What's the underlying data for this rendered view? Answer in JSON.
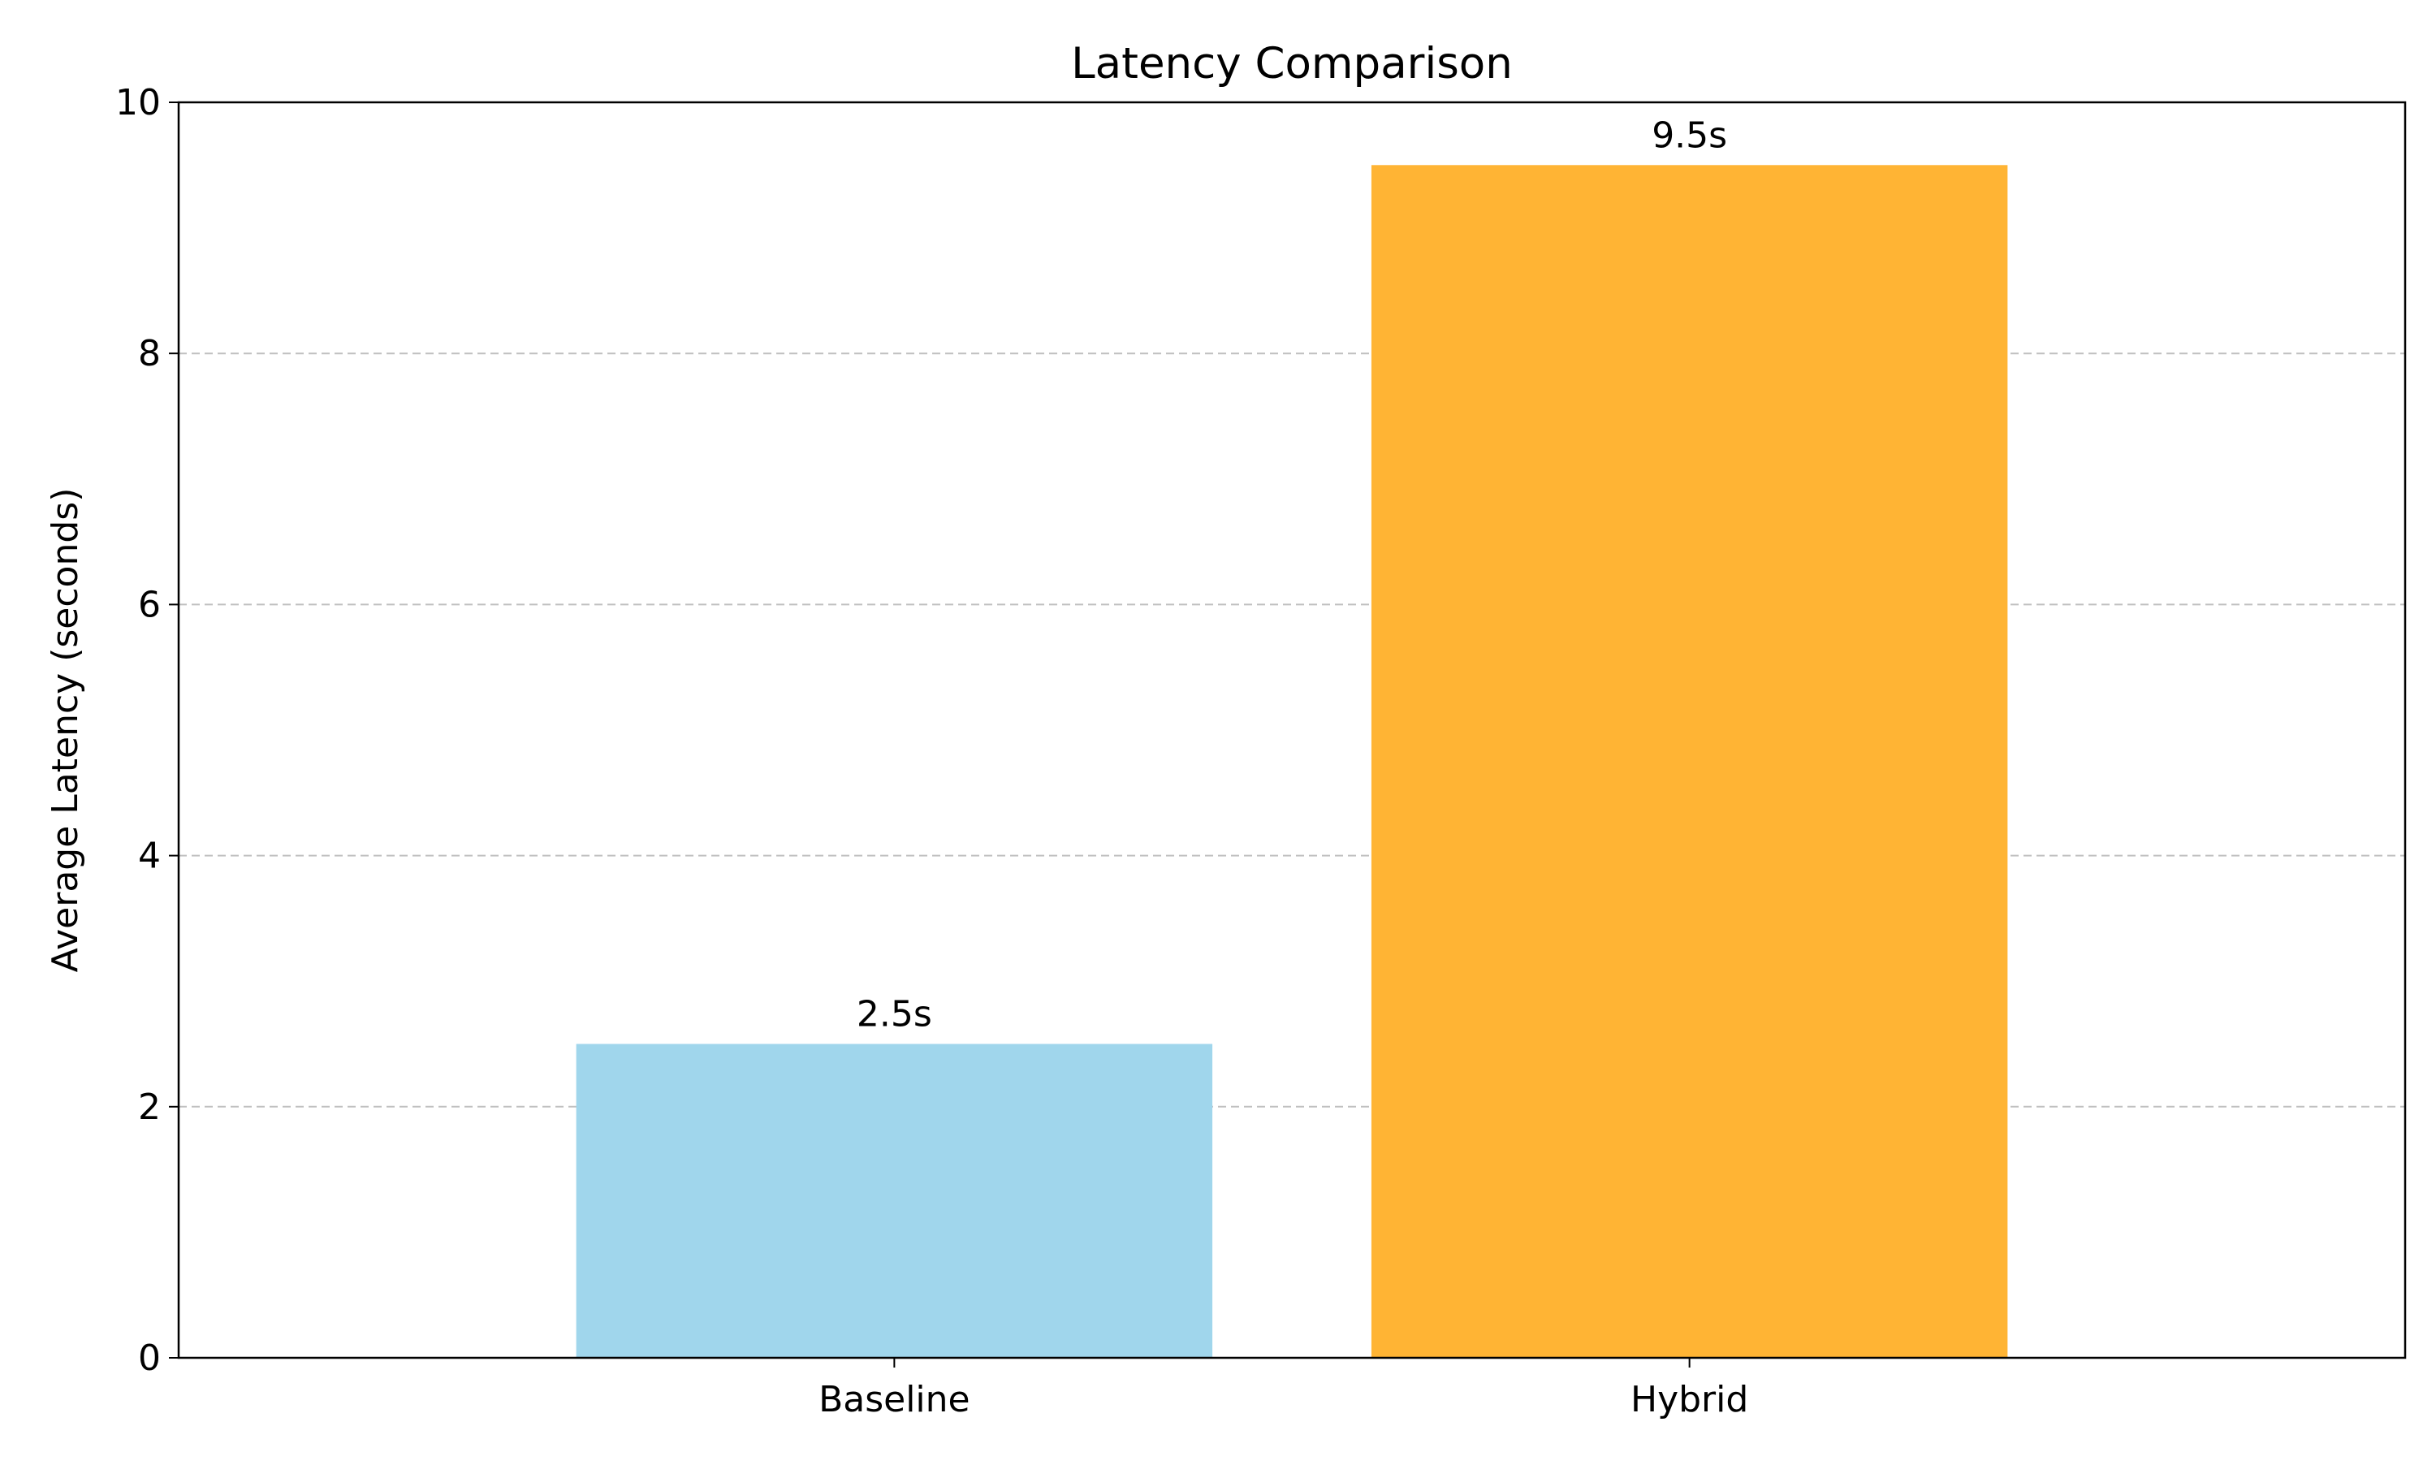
{
  "chart_data": {
    "type": "bar",
    "title": "Latency Comparison",
    "xlabel": "",
    "ylabel": "Average Latency (seconds)",
    "categories": [
      "Baseline",
      "Hybrid"
    ],
    "values": [
      2.5,
      9.5
    ],
    "value_labels": [
      "2.5s",
      "9.5s"
    ],
    "colors": [
      "#a0d6ec",
      "#ffb434"
    ],
    "ylim": [
      0,
      10
    ],
    "yticks": [
      0,
      2,
      4,
      6,
      8,
      10
    ],
    "ytick_labels": [
      "0",
      "2",
      "4",
      "6",
      "8",
      "10"
    ],
    "grid": "y-axis dashed",
    "grid_color": "#c0c0c0",
    "legend": "none"
  }
}
